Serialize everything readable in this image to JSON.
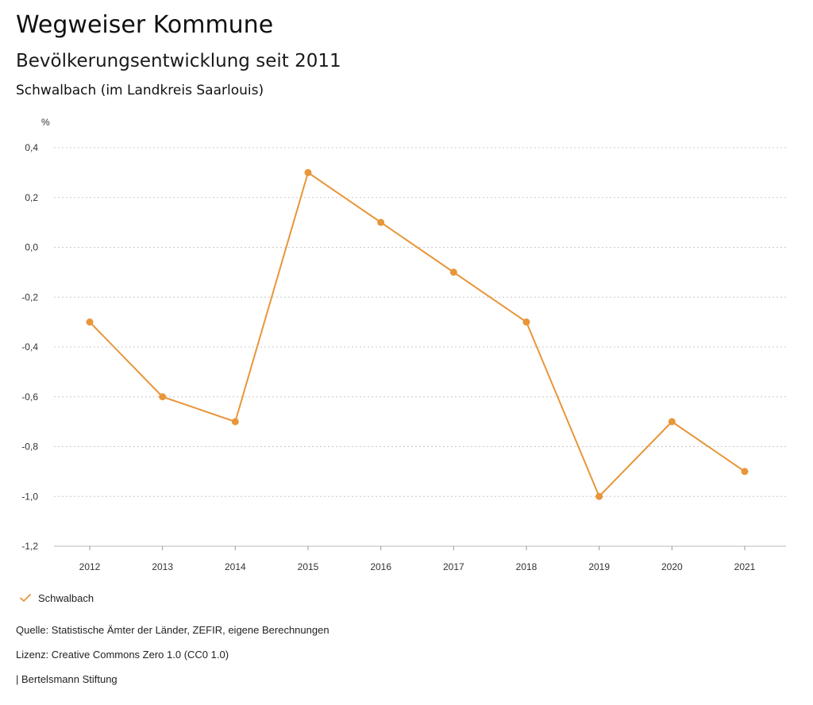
{
  "header": {
    "page_title": "Wegweiser Kommune"
  },
  "chart_data": {
    "type": "line",
    "title": "Bevölkerungsentwicklung seit 2011",
    "subtitle": "Schwalbach (im Landkreis Saarlouis)",
    "ylabel": "%",
    "xlabel": "",
    "categories": [
      "2012",
      "2013",
      "2014",
      "2015",
      "2016",
      "2017",
      "2018",
      "2019",
      "2020",
      "2021"
    ],
    "series": [
      {
        "name": "Schwalbach",
        "values": [
          -0.3,
          -0.6,
          -0.7,
          0.3,
          0.1,
          -0.1,
          -0.3,
          -1.0,
          -0.7,
          -0.9
        ]
      }
    ],
    "ylim": [
      -1.2,
      0.4
    ],
    "yticks": [
      0.4,
      0.2,
      0.0,
      -0.2,
      -0.4,
      -0.6,
      -0.8,
      -1.0,
      -1.2
    ],
    "ytick_labels": [
      "0,4",
      "0,2",
      "0,0",
      "-0,2",
      "-0,4",
      "-0,6",
      "-0,8",
      "-1,0",
      "-1,2"
    ],
    "grid": true,
    "grid_style": "dotted",
    "legend_position": "bottom-left",
    "series_color": "#e8963a"
  },
  "legend": {
    "icon": "check-icon"
  },
  "footer": {
    "source": "Quelle: Statistische Ämter der Länder, ZEFIR, eigene Berechnungen",
    "license": "Lizenz: Creative Commons Zero 1.0 (CC0 1.0)",
    "credit": "| Bertelsmann Stiftung"
  }
}
